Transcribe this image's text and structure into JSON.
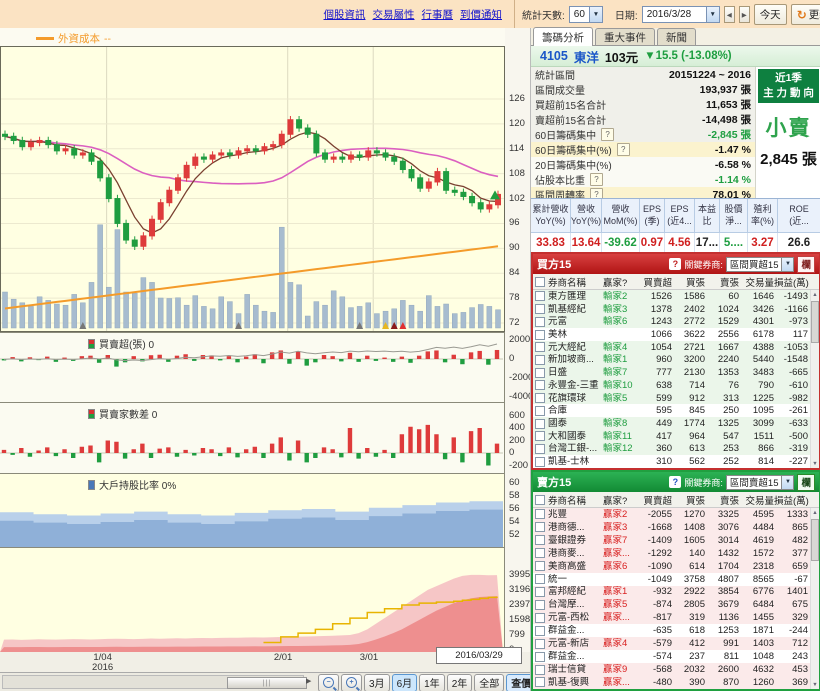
{
  "top_bar": {
    "links": [
      "個股資訊",
      "交易屬性",
      "行事曆",
      "到價通知"
    ],
    "stat_days_label": "統計天數:",
    "stat_days_value": "60",
    "date_label": "日期:",
    "date_value": "2016/3/28",
    "today_button": "今天",
    "refresh_button": "更新",
    "refresh_glyph": "↻"
  },
  "tabs": [
    {
      "label": "籌碼分析",
      "active": true
    },
    {
      "label": "重大事件",
      "active": false
    },
    {
      "label": "新聞",
      "active": false
    }
  ],
  "stock": {
    "code": "4105",
    "name": "東洋",
    "price": "103元",
    "change": "▼15.5 (-13.08%)"
  },
  "stats": {
    "rows": [
      {
        "label": "統計區間",
        "value": "20151224 ~ 2016",
        "bg": "gray"
      },
      {
        "label": "區間成交量",
        "value": "193,937 張",
        "bg": "gray"
      },
      {
        "label": "買超前15名合計",
        "value": "11,653 張",
        "bg": "gray"
      },
      {
        "label": "賣超前15名合計",
        "value": "-14,498 張",
        "bg": "gray"
      },
      {
        "label": "60日籌碼集中",
        "help": true,
        "value": "-2,845 張",
        "color": "green",
        "bg": "gray"
      },
      {
        "label": "60日籌碼集中(%)",
        "help": true,
        "value": "-1.47 %",
        "bg": "yellow"
      },
      {
        "label": "20日籌碼集中(%)",
        "value": "-6.58 %",
        "bg": "light"
      },
      {
        "label": "佔股本比重",
        "help": true,
        "value": "-1.14 %",
        "color": "green",
        "bg": "light"
      },
      {
        "label": "區間周轉率",
        "help": true,
        "value": "78.01 %",
        "bg": "yellow"
      }
    ],
    "badge": {
      "line1": "近1季",
      "line2": "主 力 動 向",
      "action": "小賣",
      "amount": "2,845 張"
    }
  },
  "metrics": [
    {
      "l1": "累計營收",
      "l2": "YoY(%)",
      "value": "33.83",
      "color": "red"
    },
    {
      "l1": "營收",
      "l2": "YoY(%)",
      "value": "13.64",
      "color": "red"
    },
    {
      "l1": "營收",
      "l2": "MoM(%)",
      "value": "-39.62",
      "color": "green"
    },
    {
      "l1": "EPS",
      "l2": "(季)",
      "value": "0.97",
      "color": "red"
    },
    {
      "l1": "EPS",
      "l2": "(近4...",
      "value": "4.56",
      "color": "red"
    },
    {
      "l1": "本益",
      "l2": "比",
      "value": "17...",
      "color": "black"
    },
    {
      "l1": "股價",
      "l2": "淨...",
      "value": "5....",
      "color": "green"
    },
    {
      "l1": "殖利",
      "l2": "率(%)",
      "value": "3.27",
      "color": "red"
    },
    {
      "l1": "ROE",
      "l2": "(近...",
      "value": "26.6",
      "color": "black"
    }
  ],
  "buy_panel": {
    "title": "買方15",
    "help_icon": "?",
    "filter_label": "關鍵券商:",
    "filter_value": "區間買超15",
    "column_button": "欄",
    "headers": [
      "券商名稱",
      "贏家?",
      "買賣超",
      "買張",
      "賣張",
      "交易量",
      "損益(萬)"
    ],
    "rows": [
      {
        "name": "東方匯理",
        "rank": "輸家2",
        "net": "1526",
        "buy": "1586",
        "sell": "60",
        "vol": "1646",
        "pnl": "-1493"
      },
      {
        "name": "凱基經紀",
        "rank": "輸家3",
        "net": "1378",
        "buy": "2402",
        "sell": "1024",
        "vol": "3426",
        "pnl": "-1166"
      },
      {
        "name": "元富",
        "rank": "輸家6",
        "net": "1243",
        "buy": "2772",
        "sell": "1529",
        "vol": "4301",
        "pnl": "-973"
      },
      {
        "name": "美林",
        "rank": "",
        "net": "1066",
        "buy": "3622",
        "sell": "2556",
        "vol": "6178",
        "pnl": "117"
      },
      {
        "name": "元大經紀",
        "rank": "輸家4",
        "net": "1054",
        "buy": "2721",
        "sell": "1667",
        "vol": "4388",
        "pnl": "-1053"
      },
      {
        "name": "新加坡商...",
        "rank": "輸家1",
        "net": "960",
        "buy": "3200",
        "sell": "2240",
        "vol": "5440",
        "pnl": "-1548"
      },
      {
        "name": "日盛",
        "rank": "輸家7",
        "net": "777",
        "buy": "2130",
        "sell": "1353",
        "vol": "3483",
        "pnl": "-665"
      },
      {
        "name": "永豐金-三重",
        "rank": "輸家10",
        "net": "638",
        "buy": "714",
        "sell": "76",
        "vol": "790",
        "pnl": "-610"
      },
      {
        "name": "花旗環球",
        "rank": "輸家5",
        "net": "599",
        "buy": "912",
        "sell": "313",
        "vol": "1225",
        "pnl": "-982"
      },
      {
        "name": "合庫",
        "rank": "",
        "net": "595",
        "buy": "845",
        "sell": "250",
        "vol": "1095",
        "pnl": "-261"
      },
      {
        "name": "國泰",
        "rank": "輸家8",
        "net": "449",
        "buy": "1774",
        "sell": "1325",
        "vol": "3099",
        "pnl": "-633"
      },
      {
        "name": "大和國泰",
        "rank": "輸家11",
        "net": "417",
        "buy": "964",
        "sell": "547",
        "vol": "1511",
        "pnl": "-500"
      },
      {
        "name": "台灣工銀-...",
        "rank": "輸家12",
        "net": "360",
        "buy": "613",
        "sell": "253",
        "vol": "866",
        "pnl": "-319"
      },
      {
        "name": "凱基-士林",
        "rank": "",
        "net": "310",
        "buy": "562",
        "sell": "252",
        "vol": "814",
        "pnl": "-227"
      }
    ]
  },
  "sell_panel": {
    "title": "賣方15",
    "help_icon": "?",
    "filter_label": "關鍵券商:",
    "filter_value": "區間賣超15",
    "column_button": "欄",
    "headers": [
      "券商名稱",
      "贏家?",
      "買賣超",
      "買張",
      "賣張",
      "交易量",
      "損益(萬)"
    ],
    "rows": [
      {
        "name": "兆豐",
        "rank": "贏家2",
        "net": "-2055",
        "buy": "1270",
        "sell": "3325",
        "vol": "4595",
        "pnl": "1333"
      },
      {
        "name": "港商德...",
        "rank": "贏家3",
        "net": "-1668",
        "buy": "1408",
        "sell": "3076",
        "vol": "4484",
        "pnl": "865"
      },
      {
        "name": "臺銀證券",
        "rank": "贏家7",
        "net": "-1409",
        "buy": "1605",
        "sell": "3014",
        "vol": "4619",
        "pnl": "482"
      },
      {
        "name": "港商麥...",
        "rank": "贏家...",
        "net": "-1292",
        "buy": "140",
        "sell": "1432",
        "vol": "1572",
        "pnl": "377"
      },
      {
        "name": "美商高盛",
        "rank": "贏家6",
        "net": "-1090",
        "buy": "614",
        "sell": "1704",
        "vol": "2318",
        "pnl": "659"
      },
      {
        "name": "統一",
        "rank": "",
        "net": "-1049",
        "buy": "3758",
        "sell": "4807",
        "vol": "8565",
        "pnl": "-67"
      },
      {
        "name": "富邦經紀",
        "rank": "贏家1",
        "net": "-932",
        "buy": "2922",
        "sell": "3854",
        "vol": "6776",
        "pnl": "1401"
      },
      {
        "name": "台灣摩...",
        "rank": "贏家5",
        "net": "-874",
        "buy": "2805",
        "sell": "3679",
        "vol": "6484",
        "pnl": "675"
      },
      {
        "name": "元富-西松",
        "rank": "贏家...",
        "net": "-817",
        "buy": "319",
        "sell": "1136",
        "vol": "1455",
        "pnl": "329"
      },
      {
        "name": "群益金...",
        "rank": "",
        "net": "-635",
        "buy": "618",
        "sell": "1253",
        "vol": "1871",
        "pnl": "-244"
      },
      {
        "name": "元富-新店",
        "rank": "贏家4",
        "net": "-579",
        "buy": "412",
        "sell": "991",
        "vol": "1403",
        "pnl": "712"
      },
      {
        "name": "群益金...",
        "rank": "",
        "net": "-574",
        "buy": "237",
        "sell": "811",
        "vol": "1048",
        "pnl": "243"
      },
      {
        "name": "瑞士信貸",
        "rank": "贏家9",
        "net": "-568",
        "buy": "2032",
        "sell": "2600",
        "vol": "4632",
        "pnl": "453"
      },
      {
        "name": "凱基-復興",
        "rank": "贏家...",
        "net": "-480",
        "buy": "390",
        "sell": "870",
        "vol": "1260",
        "pnl": "369"
      }
    ]
  },
  "chart": {
    "legend": "外資成本",
    "legend_suffix": "--",
    "price_axis": [
      126,
      120,
      114,
      108,
      102,
      96,
      90,
      84,
      78,
      72
    ],
    "panel2_label": "買賣超(張) 0",
    "panel2_axis": [
      2000,
      0,
      -2000,
      -4000
    ],
    "panel3_label": "買賣家數差 0",
    "panel3_axis": [
      600,
      400,
      200,
      0,
      -200
    ],
    "panel4_label": "大戶持股比率 0%",
    "panel4_axis": [
      60,
      58,
      56,
      54,
      52
    ],
    "panel5_axis": [
      3995,
      3196,
      2397,
      1598,
      799,
      0
    ],
    "x_labels": [
      {
        "text": "1/04",
        "sub": "2016",
        "f": 0.21
      },
      {
        "text": "2/01",
        "sub": "",
        "f": 0.57
      },
      {
        "text": "3/01",
        "sub": "",
        "f": 0.74
      }
    ],
    "last_date_box": "2016/03/29"
  },
  "bottom_toolbar": {
    "buttons": [
      {
        "label": "3月",
        "style": "normal"
      },
      {
        "label": "6月",
        "style": "active"
      },
      {
        "label": "1年",
        "style": "normal"
      },
      {
        "label": "2年",
        "style": "normal"
      },
      {
        "label": "全部",
        "style": "normal"
      },
      {
        "label": "查價",
        "style": "accent"
      }
    ]
  },
  "colors": {
    "up_candle": "#DE3B3B",
    "down_candle": "#1F9D40",
    "cost_line": "#F49B2A",
    "ma_fast": "#7A4030",
    "ma_slow": "#DB5FC0",
    "volume_bar": "#A7BCCF",
    "buy_theme": "#C43030",
    "sell_theme": "#20A040",
    "action_green": "#2FA34D"
  },
  "chart_data": {
    "type": "candlestick-multi-panel",
    "title": "4105 東洋 籌碼分析 K線圖",
    "price_axis_range": [
      72,
      126
    ],
    "closes": [
      117,
      116,
      114.5,
      115.5,
      116,
      115,
      113.5,
      114,
      112.5,
      113,
      111,
      107,
      102,
      96,
      92,
      90.5,
      93,
      97,
      101,
      104,
      107,
      110,
      112,
      111.5,
      112.5,
      113,
      112.5,
      113.5,
      114,
      113.5,
      114.5,
      115,
      117.5,
      121,
      119,
      117.5,
      113,
      111.5,
      112,
      111.5,
      112.5,
      112,
      113.5,
      113,
      112,
      111,
      109,
      107,
      104.5,
      106,
      108.5,
      104,
      103.5,
      102.5,
      101,
      99.5,
      100.5,
      103
    ],
    "volumes": [
      1500,
      1200,
      1050,
      900,
      1300,
      1150,
      1000,
      950,
      1400,
      1050,
      1900,
      4300,
      1700,
      4100,
      1500,
      1450,
      2100,
      1900,
      1250,
      1230,
      1260,
      950,
      1350,
      900,
      800,
      1300,
      1100,
      600,
      1400,
      950,
      700,
      650,
      4200,
      1900,
      1800,
      500,
      1100,
      950,
      1550,
      1300,
      850,
      900,
      1050,
      600,
      700,
      800,
      1150,
      950,
      700,
      1350,
      900,
      1000,
      600,
      650,
      850,
      980,
      900,
      760
    ],
    "cost_line": {
      "start": 75.5,
      "end": 90.5
    },
    "net_buy_sell": [
      -150,
      200,
      -250,
      180,
      -120,
      250,
      -300,
      150,
      -200,
      300,
      350,
      -400,
      420,
      -800,
      -350,
      300,
      -250,
      400,
      450,
      -300,
      350,
      500,
      -200,
      420,
      380,
      -150,
      300,
      -350,
      250,
      500,
      -450,
      700,
      900,
      -500,
      800,
      -700,
      -350,
      420,
      300,
      -250,
      650,
      -300,
      350,
      -200,
      150,
      -300,
      250,
      -400,
      350,
      800,
      900,
      -350,
      450,
      -550,
      700,
      850,
      -600,
      950
    ],
    "trader_count_diff": [
      50,
      -30,
      80,
      -60,
      40,
      90,
      -50,
      60,
      -80,
      100,
      120,
      -150,
      200,
      180,
      -90,
      60,
      150,
      -80,
      70,
      90,
      -60,
      50,
      -40,
      80,
      60,
      -50,
      90,
      -70,
      60,
      100,
      -80,
      150,
      250,
      -120,
      200,
      -150,
      -80,
      90,
      60,
      -70,
      400,
      -90,
      80,
      -60,
      50,
      -80,
      300,
      420,
      380,
      450,
      300,
      -100,
      250,
      -150,
      350,
      400,
      -200,
      150
    ],
    "big_holder_ratio_a": [
      55.5,
      55.2,
      55.0,
      55.3,
      55.6,
      55.2,
      55.0,
      55.4,
      55.8,
      56.0,
      55.6,
      56.2,
      56.6,
      57.0,
      57.2
    ],
    "big_holder_ratio_b": [
      54.2,
      53.9,
      53.7,
      54.0,
      54.3,
      53.9,
      53.7,
      54.1,
      54.5,
      54.7,
      54.3,
      54.9,
      55.3,
      55.7,
      55.9
    ],
    "margin_pink": [
      550,
      560,
      540,
      555,
      570,
      560,
      550,
      565,
      580,
      570,
      560,
      575,
      590,
      600,
      590,
      580,
      595,
      610,
      600,
      615,
      625,
      615,
      630,
      640,
      630,
      645,
      655,
      650,
      665,
      675,
      665,
      680,
      690,
      700,
      710,
      720,
      730,
      745,
      760,
      780,
      800,
      900,
      1100,
      1400,
      1700,
      2000,
      2300,
      2600,
      2900,
      3200,
      3400,
      3600,
      3800,
      3950,
      4000,
      4000,
      3980,
      3990
    ],
    "margin_red": [
      150,
      155,
      150,
      158,
      160,
      155,
      152,
      158,
      162,
      160,
      158,
      162,
      166,
      170,
      168,
      165,
      170,
      175,
      172,
      176,
      180,
      178,
      182,
      186,
      184,
      188,
      192,
      190,
      195,
      198,
      196,
      200,
      205,
      210,
      215,
      220,
      228,
      236,
      245,
      255,
      270,
      320,
      420,
      560,
      720,
      900,
      1100,
      1350,
      1600,
      1850,
      2100,
      2300,
      2500,
      2650,
      2750,
      2820,
      2850,
      2870
    ],
    "yellow_line": [
      0,
      0,
      0,
      0,
      0,
      0,
      0,
      0,
      0,
      0,
      0,
      0,
      0,
      0,
      0,
      0,
      0,
      0,
      0,
      0,
      0,
      0,
      0,
      0,
      0,
      0,
      0,
      0,
      0,
      0,
      400,
      400,
      700,
      700,
      900,
      900,
      1100,
      1100,
      1400,
      1400,
      1700,
      1700,
      2000,
      2000,
      2200,
      2200,
      2400,
      2400,
      2500,
      2500,
      2550,
      2550,
      2600,
      2650,
      2700,
      2750,
      2800,
      2850
    ],
    "markers": [
      {
        "index": 9,
        "color": "#777777"
      },
      {
        "index": 27,
        "color": "#777777"
      },
      {
        "index": 41,
        "color": "#777777"
      },
      {
        "index": 44,
        "color": "#E8B820"
      },
      {
        "index": 45,
        "color": "#8B1A1A"
      },
      {
        "index": 46,
        "color": "#E03030"
      }
    ],
    "last_price_marker": 103
  }
}
